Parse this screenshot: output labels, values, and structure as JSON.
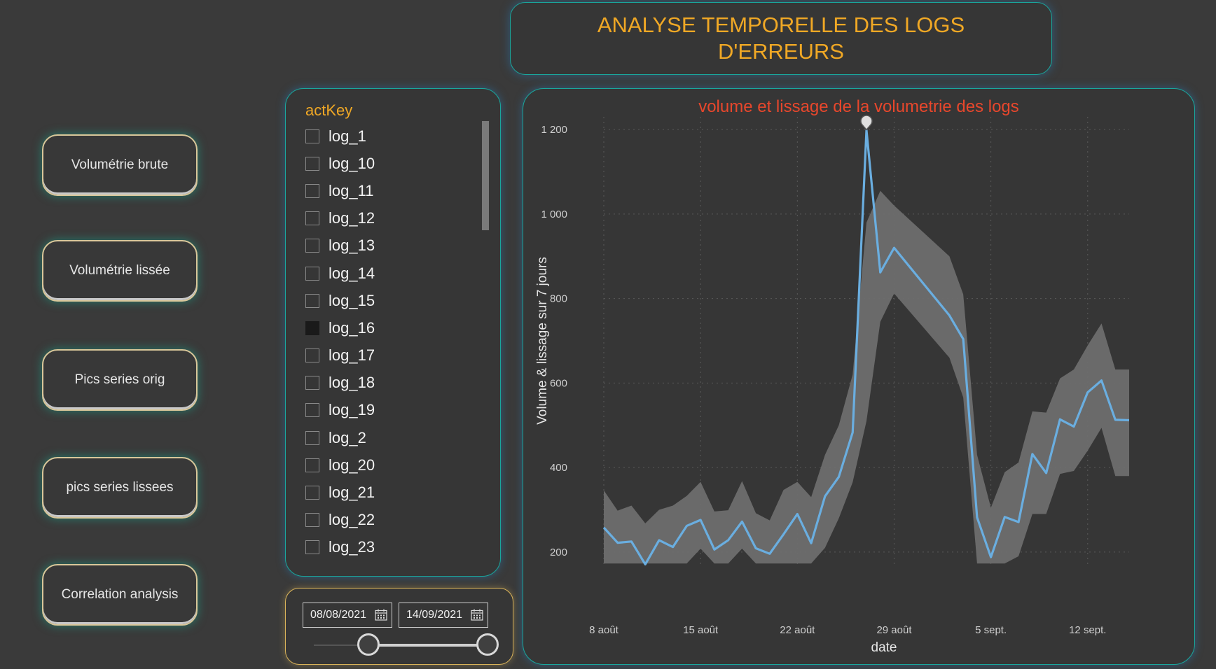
{
  "header": {
    "title": "ANALYSE TEMPORELLE  DES LOGS D'ERREURS"
  },
  "nav": {
    "buttons": [
      {
        "label": "Volumétrie brute"
      },
      {
        "label": "Volumétrie lissée"
      },
      {
        "label": "Pics series orig"
      },
      {
        "label": "pics series lissees"
      },
      {
        "label": "Correlation analysis"
      }
    ]
  },
  "slicer": {
    "title": "actKey",
    "items": [
      {
        "label": "log_1",
        "checked": false
      },
      {
        "label": "log_10",
        "checked": false
      },
      {
        "label": "log_11",
        "checked": false
      },
      {
        "label": "log_12",
        "checked": false
      },
      {
        "label": "log_13",
        "checked": false
      },
      {
        "label": "log_14",
        "checked": false
      },
      {
        "label": "log_15",
        "checked": false
      },
      {
        "label": "log_16",
        "checked": true
      },
      {
        "label": "log_17",
        "checked": false
      },
      {
        "label": "log_18",
        "checked": false
      },
      {
        "label": "log_19",
        "checked": false
      },
      {
        "label": "log_2",
        "checked": false
      },
      {
        "label": "log_20",
        "checked": false
      },
      {
        "label": "log_21",
        "checked": false
      },
      {
        "label": "log_22",
        "checked": false
      },
      {
        "label": "log_23",
        "checked": false
      }
    ]
  },
  "date_filter": {
    "start": "08/08/2021",
    "end": "14/09/2021",
    "icon": "calendar-icon"
  },
  "colors": {
    "accent_title": "#f0a825",
    "chart_title": "#e8472c",
    "line": "#6aaee0",
    "band": "#6e6e6e",
    "panel_border": "#1aa79c"
  },
  "chart_data": {
    "type": "line",
    "title": "volume et lissage de la volumetrie des logs",
    "xlabel": "date",
    "ylabel": "Volume & lissage sur 7 jours",
    "ylim": [
      170,
      1230
    ],
    "x_tick_labels": [
      "8 août",
      "15 août",
      "22 août",
      "29 août",
      "5 sept.",
      "12 sept."
    ],
    "y_ticks": [
      200,
      400,
      600,
      800,
      1000,
      1200
    ],
    "y_tick_labels": [
      "200",
      "400",
      "600",
      "800",
      "1 000",
      "1 200"
    ],
    "grid": true,
    "x": [
      "2021-08-08",
      "2021-08-09",
      "2021-08-10",
      "2021-08-11",
      "2021-08-12",
      "2021-08-13",
      "2021-08-14",
      "2021-08-15",
      "2021-08-16",
      "2021-08-17",
      "2021-08-18",
      "2021-08-19",
      "2021-08-20",
      "2021-08-21",
      "2021-08-22",
      "2021-08-23",
      "2021-08-24",
      "2021-08-25",
      "2021-08-26",
      "2021-08-27",
      "2021-08-28",
      "2021-08-29",
      "2021-09-02",
      "2021-09-03",
      "2021-09-04",
      "2021-09-05",
      "2021-09-06",
      "2021-09-07",
      "2021-09-08",
      "2021-09-09",
      "2021-09-10",
      "2021-09-11",
      "2021-09-12",
      "2021-09-13",
      "2021-09-14",
      "2021-09-15"
    ],
    "series": [
      {
        "values": [
          258,
          222,
          225,
          171,
          228,
          212,
          262,
          276,
          206,
          228,
          272,
          209,
          196,
          242,
          290,
          221,
          332,
          378,
          483,
          1198,
          862,
          920,
          760,
          704,
          282,
          188,
          283,
          271,
          432,
          387,
          514,
          497,
          578,
          606,
          513,
          512
        ]
      },
      {
        "upper": [
          346,
          298,
          310,
          268,
          300,
          310,
          333,
          366,
          296,
          299,
          368,
          292,
          275,
          347,
          366,
          330,
          430,
          500,
          620,
          980,
          1055,
          1020,
          900,
          810,
          430,
          305,
          389,
          412,
          533,
          530,
          611,
          632,
          689,
          741,
          632,
          632
        ],
        "lower": [
          173,
          173,
          173,
          173,
          173,
          173,
          173,
          208,
          173,
          173,
          208,
          173,
          173,
          173,
          173,
          173,
          210,
          280,
          365,
          510,
          745,
          812,
          660,
          566,
          173,
          173,
          173,
          190,
          290,
          290,
          385,
          392,
          440,
          494,
          380,
          380
        ]
      }
    ]
  }
}
